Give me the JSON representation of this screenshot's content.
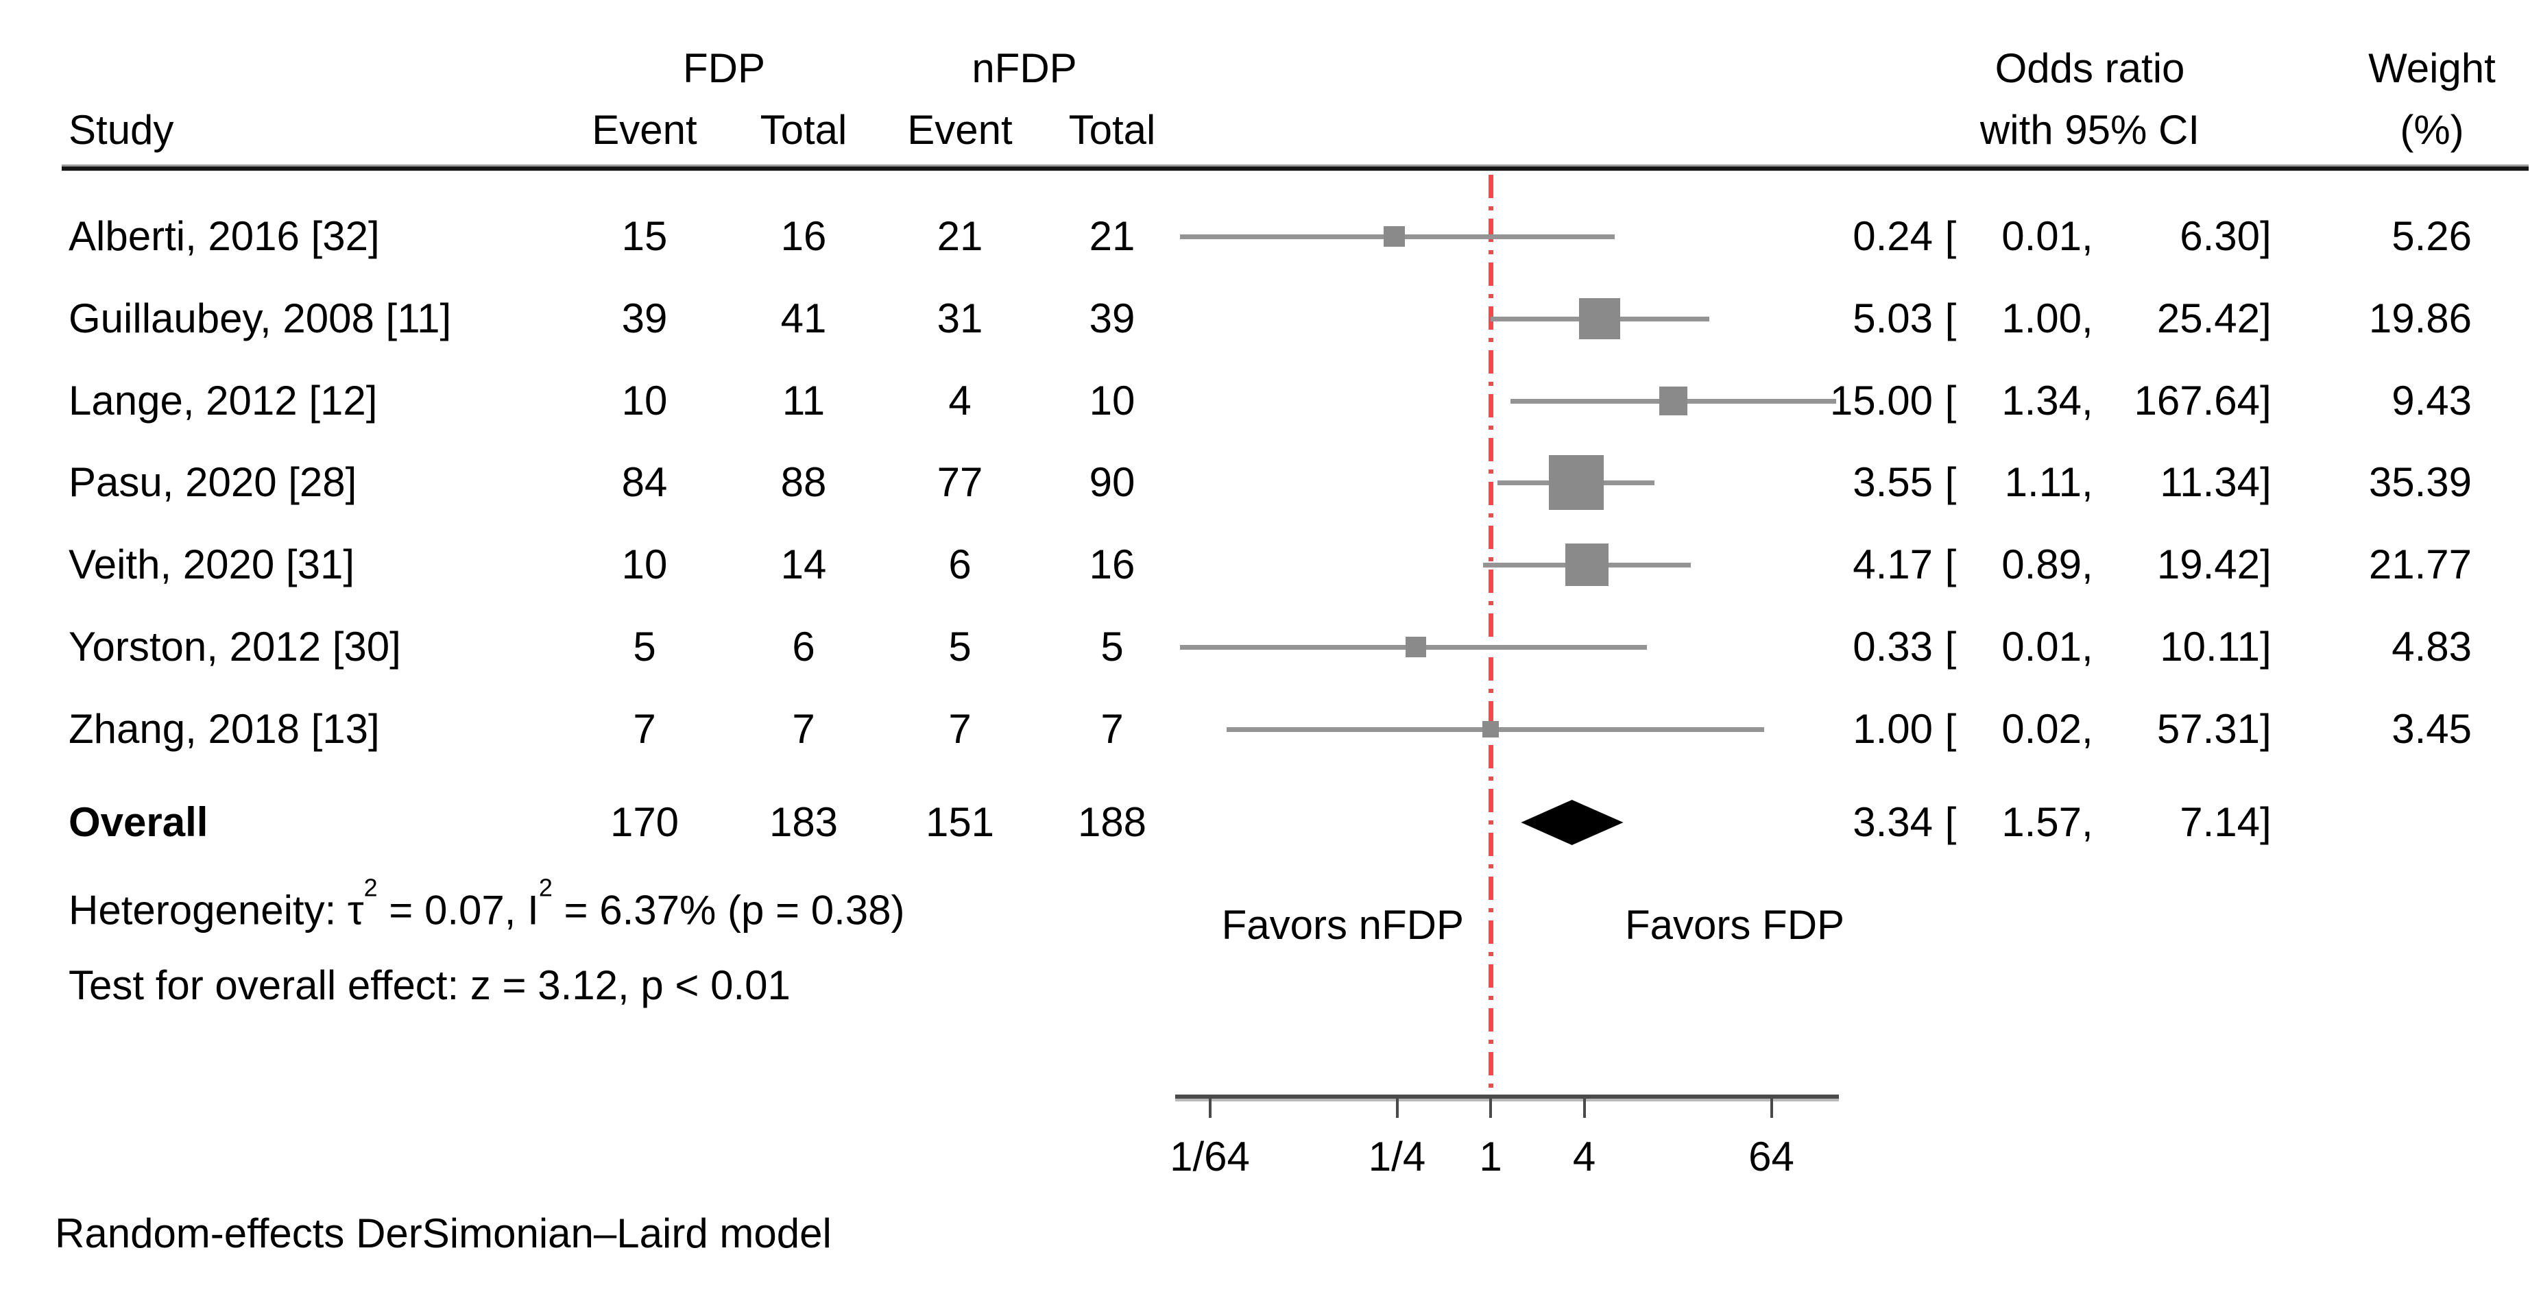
{
  "header": {
    "study": "Study",
    "group1": "FDP",
    "group2": "nFDP",
    "event": "Event",
    "total": "Total",
    "or_line1": "Odds ratio",
    "or_line2": "with 95% CI",
    "weight_line1": "Weight",
    "weight_line2": "(%)"
  },
  "footnotes": {
    "heterogeneity_prefix": "Heterogeneity: τ",
    "heterogeneity_sup1": "2",
    "heterogeneity_mid": " = 0.07, I",
    "heterogeneity_sup2": "2",
    "heterogeneity_tail": " = 6.37% (p = 0.38)",
    "overall_effect": "Test for overall effect: z = 3.12, p < 0.01",
    "model": "Random-effects DerSimonian–Laird model"
  },
  "colors": {
    "null_line": "#f5474d",
    "marker": "#8a8a8a",
    "ci_line": "#949494",
    "diamond": "#000000",
    "axis": "#4a4a4a",
    "axis_shadow": "#b9b9b9",
    "text": "#000000"
  },
  "chart_data": {
    "type": "forest",
    "x_scale": "log base 4",
    "null_value": 1,
    "x_ticks": [
      {
        "label": "1/64",
        "value": 0.015625
      },
      {
        "label": "1/4",
        "value": 0.25
      },
      {
        "label": "1",
        "value": 1
      },
      {
        "label": "4",
        "value": 4
      },
      {
        "label": "64",
        "value": 64
      }
    ],
    "favors_left": "Favors nFDP",
    "favors_right": "Favors FDP",
    "studies": [
      {
        "study": "Alberti, 2016 [32]",
        "fdp_event": "15",
        "fdp_total": "16",
        "nfdp_event": "21",
        "nfdp_total": "21",
        "or": 0.24,
        "ci_low": 0.01,
        "ci_high": 6.3,
        "or_text": "0.24",
        "ci_low_text": "0.01",
        "ci_high_text": "6.30",
        "weight": "5.26"
      },
      {
        "study": "Guillaubey, 2008 [11]",
        "fdp_event": "39",
        "fdp_total": "41",
        "nfdp_event": "31",
        "nfdp_total": "39",
        "or": 5.03,
        "ci_low": 1.0,
        "ci_high": 25.42,
        "or_text": "5.03",
        "ci_low_text": "1.00",
        "ci_high_text": "25.42",
        "weight": "19.86"
      },
      {
        "study": "Lange, 2012 [12]",
        "fdp_event": "10",
        "fdp_total": "11",
        "nfdp_event": "4",
        "nfdp_total": "10",
        "or": 15.0,
        "ci_low": 1.34,
        "ci_high": 167.64,
        "or_text": "15.00",
        "ci_low_text": "1.34",
        "ci_high_text": "167.64",
        "weight": "9.43"
      },
      {
        "study": "Pasu, 2020 [28]",
        "fdp_event": "84",
        "fdp_total": "88",
        "nfdp_event": "77",
        "nfdp_total": "90",
        "or": 3.55,
        "ci_low": 1.11,
        "ci_high": 11.34,
        "or_text": "3.55",
        "ci_low_text": "1.11",
        "ci_high_text": "11.34",
        "weight": "35.39"
      },
      {
        "study": "Veith, 2020 [31]",
        "fdp_event": "10",
        "fdp_total": "14",
        "nfdp_event": "6",
        "nfdp_total": "16",
        "or": 4.17,
        "ci_low": 0.89,
        "ci_high": 19.42,
        "or_text": "4.17",
        "ci_low_text": "0.89",
        "ci_high_text": "19.42",
        "weight": "21.77"
      },
      {
        "study": "Yorston, 2012 [30]",
        "fdp_event": "5",
        "fdp_total": "6",
        "nfdp_event": "5",
        "nfdp_total": "5",
        "or": 0.33,
        "ci_low": 0.01,
        "ci_high": 10.11,
        "or_text": "0.33",
        "ci_low_text": "0.01",
        "ci_high_text": "10.11",
        "weight": "4.83"
      },
      {
        "study": "Zhang, 2018 [13]",
        "fdp_event": "7",
        "fdp_total": "7",
        "nfdp_event": "7",
        "nfdp_total": "7",
        "or": 1.0,
        "ci_low": 0.02,
        "ci_high": 57.31,
        "or_text": "1.00",
        "ci_low_text": "0.02",
        "ci_high_text": "57.31",
        "weight": "3.45"
      }
    ],
    "overall": {
      "label": "Overall",
      "fdp_event": "170",
      "fdp_total": "183",
      "nfdp_event": "151",
      "nfdp_total": "188",
      "or": 3.34,
      "ci_low": 1.57,
      "ci_high": 7.14,
      "or_text": "3.34",
      "ci_low_text": "1.57",
      "ci_high_text": "7.14"
    }
  }
}
